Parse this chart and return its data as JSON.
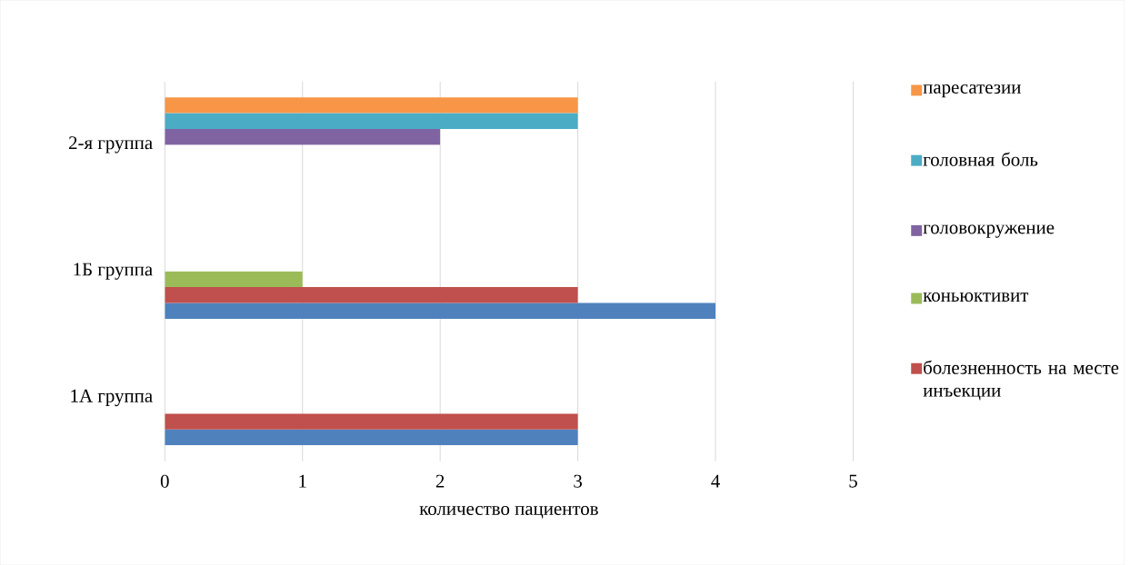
{
  "chart_data": {
    "type": "bar",
    "orientation": "horizontal",
    "xlabel": "количество пациентов",
    "categories": [
      "2-я группа",
      "1Б группа",
      "1А группа"
    ],
    "series": [
      {
        "color": "#4f81bd",
        "values": [
          null,
          4,
          3
        ]
      },
      {
        "name": "болезненность на месте инъекции",
        "color": "#c0504d",
        "values": [
          null,
          3,
          3
        ]
      },
      {
        "name": "коньюктивит",
        "color": "#9bbb59",
        "values": [
          null,
          1,
          null
        ]
      },
      {
        "name": "головокружение",
        "color": "#8064a2",
        "values": [
          2,
          null,
          null
        ]
      },
      {
        "name": "головная боль",
        "color": "#4bacc6",
        "values": [
          3,
          null,
          null
        ]
      },
      {
        "name": "паресатезии",
        "color": "#f79646",
        "values": [
          3,
          null,
          null
        ]
      }
    ],
    "xlim": [
      0,
      5
    ],
    "xticks": [
      0,
      1,
      2,
      3,
      4,
      5
    ],
    "grid": "x",
    "legend": "right"
  }
}
